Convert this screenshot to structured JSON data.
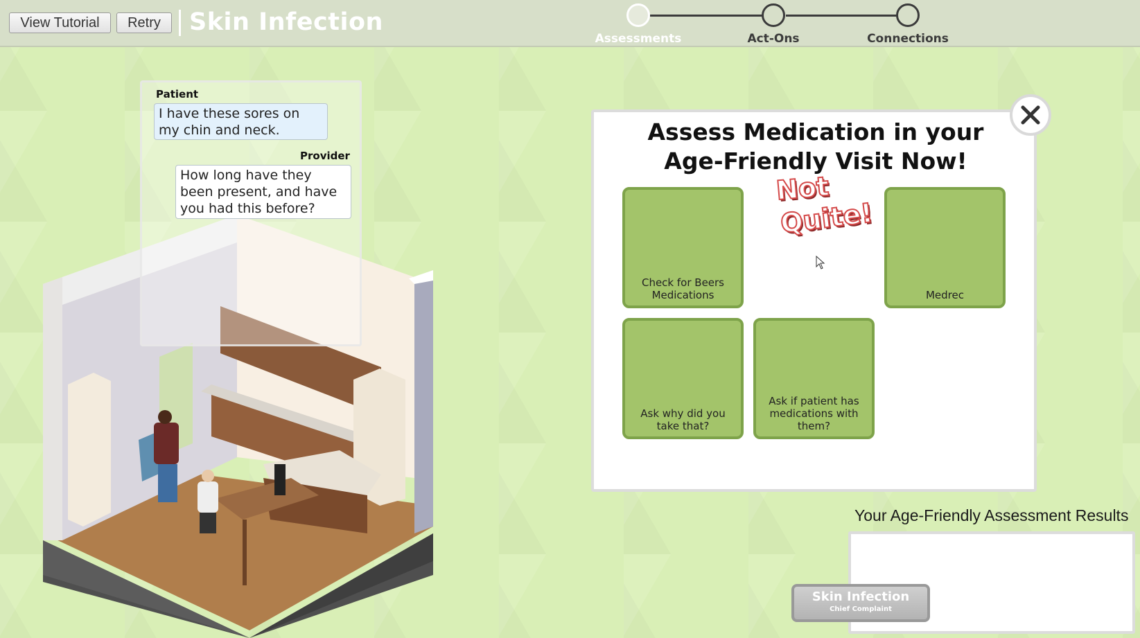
{
  "header": {
    "tutorial_label": "View Tutorial",
    "retry_label": "Retry",
    "title": "Skin Infection"
  },
  "progress": {
    "steps": [
      {
        "label": "Assessments",
        "active": true
      },
      {
        "label": "Act-Ons",
        "active": false
      },
      {
        "label": "Connections",
        "active": false
      }
    ]
  },
  "dialogue": {
    "patient_speaker": "Patient",
    "patient_text": "I have these sores on my chin and neck.",
    "provider_speaker": "Provider",
    "provider_text": "How long have they been present, and have you had this before?"
  },
  "modal": {
    "title": "Assess Medication in your Age-Friendly Visit Now!",
    "feedback_line1": "Not",
    "feedback_line2": "Quite!",
    "cards": [
      {
        "label": "Check for Beers Medications"
      },
      {
        "label": "Medrec"
      },
      {
        "label": "Ask why did you take that?"
      },
      {
        "label": "Ask if patient has medications with them?"
      }
    ]
  },
  "results": {
    "label": "Your Age-Friendly Assessment Results"
  },
  "complaint": {
    "name": "Skin Infection",
    "sub": "Chief Complaint"
  },
  "colors": {
    "background": "#d9efb6",
    "card_green": "#a3c46a",
    "card_border": "#7ea34a",
    "feedback_red": "#d54a4a"
  }
}
